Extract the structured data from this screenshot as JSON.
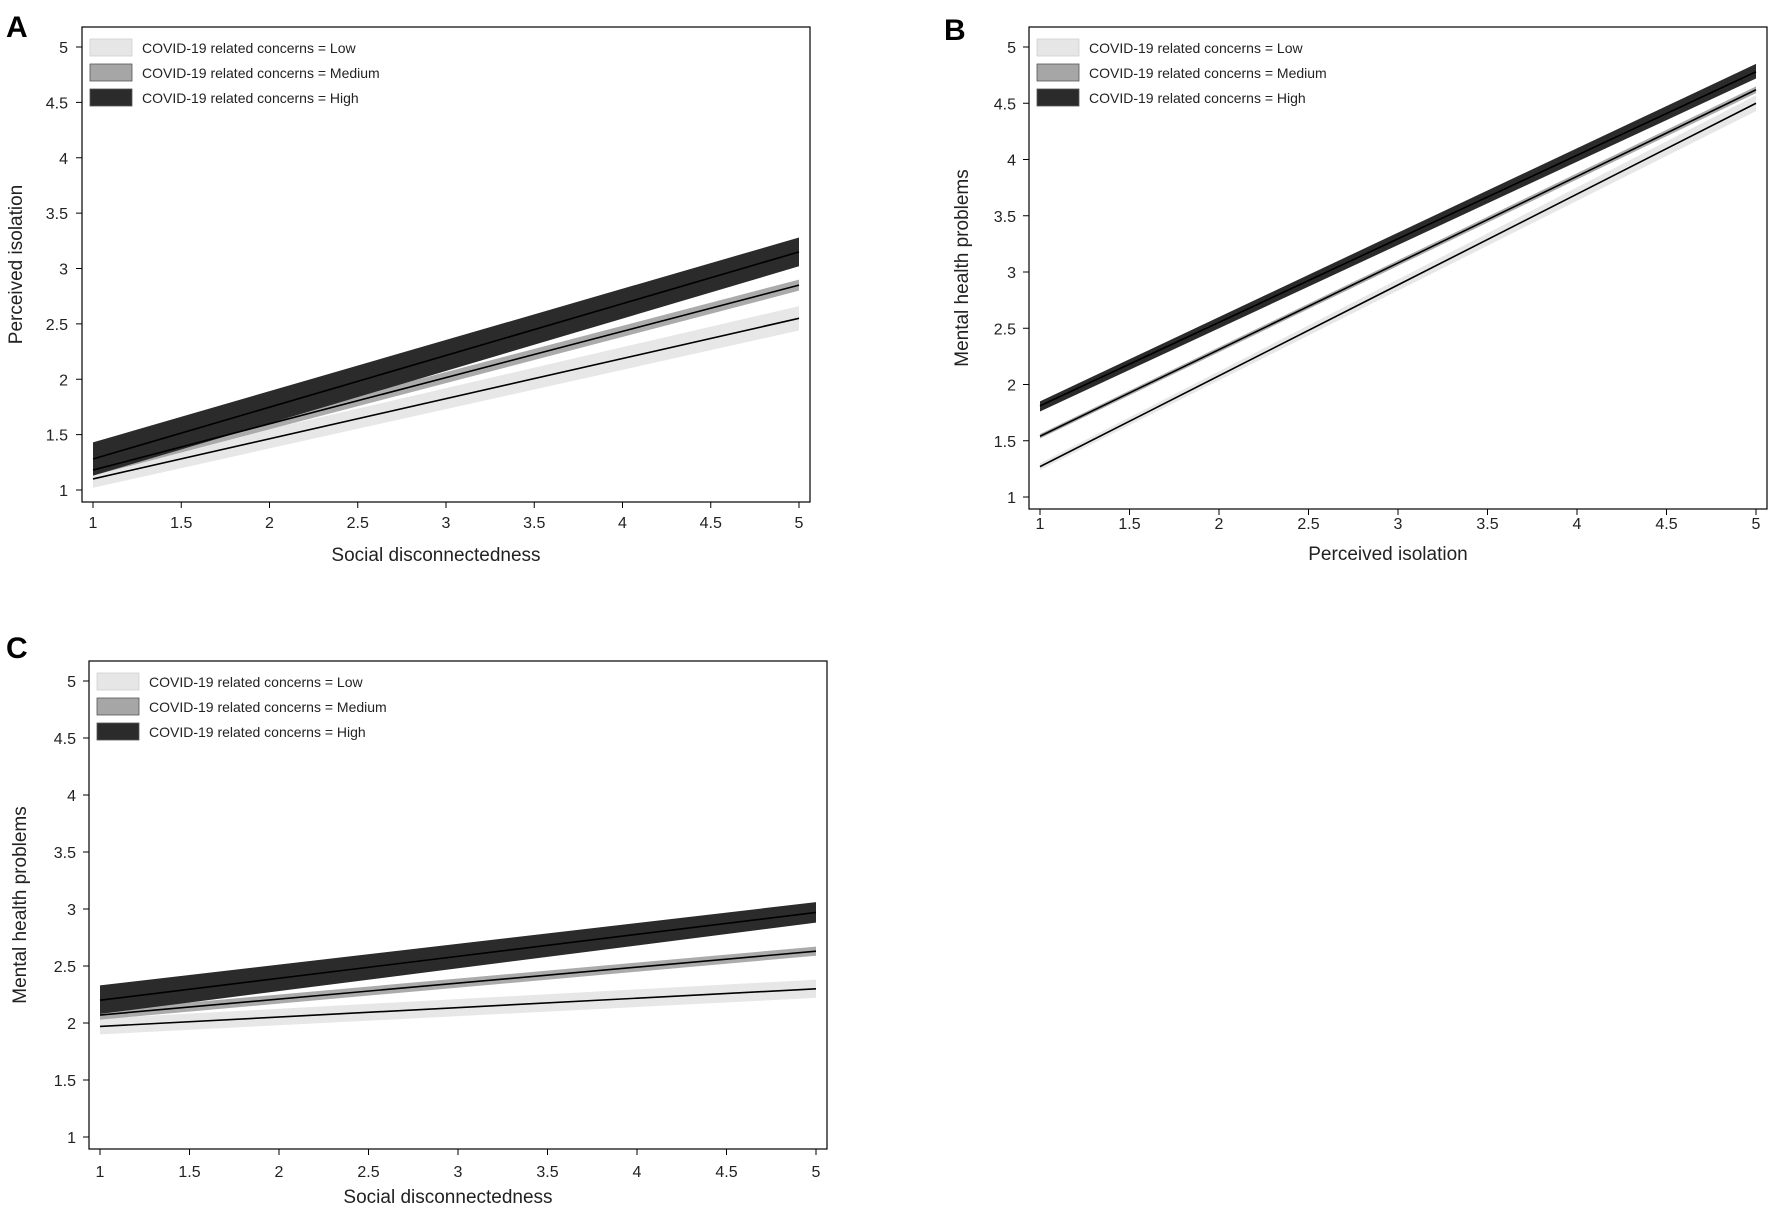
{
  "colors": {
    "low_band": "#e6e6e6",
    "medium_band": "#a6a6a6",
    "high_band": "#2b2b2b",
    "line": "#000000"
  },
  "legend_entries": [
    {
      "key": "low",
      "label": "COVID-19 related concerns = Low"
    },
    {
      "key": "medium",
      "label": "COVID-19 related concerns = Medium"
    },
    {
      "key": "high",
      "label": "COVID-19 related concerns = High"
    }
  ],
  "chart_data": [
    {
      "panel": "A",
      "type": "line",
      "xlabel": "Social disconnectedness",
      "ylabel": "Perceived isolation",
      "xlim": [
        1,
        5
      ],
      "ylim": [
        1,
        5
      ],
      "xticks": [
        "1",
        "1.5",
        "2",
        "2.5",
        "3",
        "3.5",
        "4",
        "4.5",
        "5"
      ],
      "yticks": [
        "1",
        "1.5",
        "2",
        "2.5",
        "3",
        "3.5",
        "4",
        "4.5",
        "5"
      ],
      "legend_position": "top-left",
      "series": [
        {
          "key": "low",
          "x": [
            1,
            5
          ],
          "y": [
            1.1,
            2.55
          ],
          "lower": [
            1.02,
            2.44
          ],
          "upper": [
            1.18,
            2.66
          ]
        },
        {
          "key": "medium",
          "x": [
            1,
            5
          ],
          "y": [
            1.18,
            2.85
          ],
          "lower": [
            1.13,
            2.8
          ],
          "upper": [
            1.23,
            2.9
          ]
        },
        {
          "key": "high",
          "x": [
            1,
            5
          ],
          "y": [
            1.28,
            3.15
          ],
          "lower": [
            1.13,
            3.02
          ],
          "upper": [
            1.43,
            3.28
          ]
        }
      ]
    },
    {
      "panel": "B",
      "type": "line",
      "xlabel": "Perceived isolation",
      "ylabel": "Mental health problems",
      "xlim": [
        1,
        5
      ],
      "ylim": [
        1,
        5
      ],
      "xticks": [
        "1",
        "1.5",
        "2",
        "2.5",
        "3",
        "3.5",
        "4",
        "4.5",
        "5"
      ],
      "yticks": [
        "1",
        "1.5",
        "2",
        "2.5",
        "3",
        "3.5",
        "4",
        "4.5",
        "5"
      ],
      "legend_position": "top-left",
      "series": [
        {
          "key": "low",
          "x": [
            1,
            5
          ],
          "y": [
            1.27,
            4.5
          ],
          "lower": [
            1.24,
            4.43
          ],
          "upper": [
            1.3,
            4.57
          ]
        },
        {
          "key": "medium",
          "x": [
            1,
            5
          ],
          "y": [
            1.54,
            4.62
          ],
          "lower": [
            1.52,
            4.59
          ],
          "upper": [
            1.56,
            4.65
          ]
        },
        {
          "key": "high",
          "x": [
            1,
            5
          ],
          "y": [
            1.81,
            4.78
          ],
          "lower": [
            1.76,
            4.72
          ],
          "upper": [
            1.85,
            4.85
          ]
        }
      ]
    },
    {
      "panel": "C",
      "type": "line",
      "xlabel": "Social disconnectedness",
      "ylabel": "Mental health problems",
      "xlim": [
        1,
        5
      ],
      "ylim": [
        1,
        5
      ],
      "xticks": [
        "1",
        "1.5",
        "2",
        "2.5",
        "3",
        "3.5",
        "4",
        "4.5",
        "5"
      ],
      "yticks": [
        "1",
        "1.5",
        "2",
        "2.5",
        "3",
        "3.5",
        "4",
        "4.5",
        "5"
      ],
      "legend_position": "top-left",
      "series": [
        {
          "key": "low",
          "x": [
            1,
            5
          ],
          "y": [
            1.97,
            2.3
          ],
          "lower": [
            1.9,
            2.22
          ],
          "upper": [
            2.04,
            2.38
          ]
        },
        {
          "key": "medium",
          "x": [
            1,
            5
          ],
          "y": [
            2.07,
            2.63
          ],
          "lower": [
            2.03,
            2.59
          ],
          "upper": [
            2.11,
            2.67
          ]
        },
        {
          "key": "high",
          "x": [
            1,
            5
          ],
          "y": [
            2.2,
            2.97
          ],
          "lower": [
            2.08,
            2.88
          ],
          "upper": [
            2.33,
            3.06
          ]
        }
      ]
    }
  ]
}
